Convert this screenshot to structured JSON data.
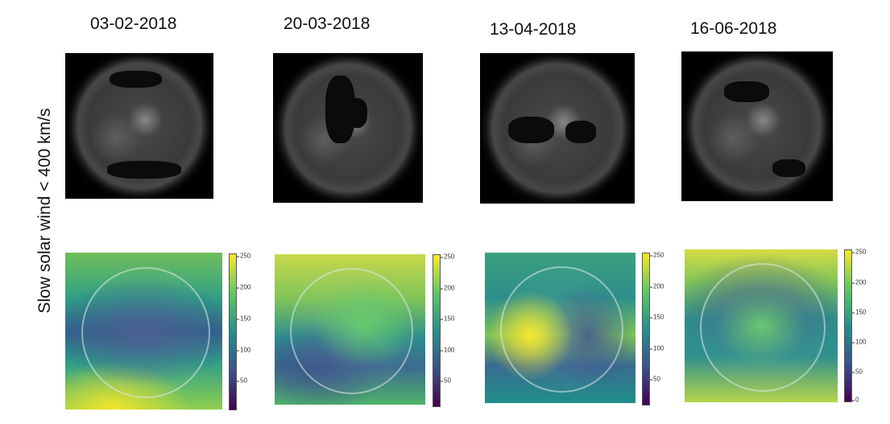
{
  "row_label": "Slow solar wind < 400 km/s",
  "panels": [
    {
      "date": "03-02-2018",
      "colorbar_ticks": [
        "250",
        "200",
        "150",
        "100",
        "50"
      ]
    },
    {
      "date": "20-03-2018",
      "colorbar_ticks": [
        "250",
        "200",
        "150",
        "100",
        "50"
      ]
    },
    {
      "date": "13-04-2018",
      "colorbar_ticks": [
        "250",
        "200",
        "150",
        "100",
        "50"
      ]
    },
    {
      "date": "16-06-2018",
      "colorbar_ticks": [
        "250",
        "200",
        "150",
        "100",
        "50",
        "0"
      ]
    }
  ],
  "colormap": [
    "#440154",
    "#3b528b",
    "#21918c",
    "#5ec962",
    "#fde725"
  ]
}
